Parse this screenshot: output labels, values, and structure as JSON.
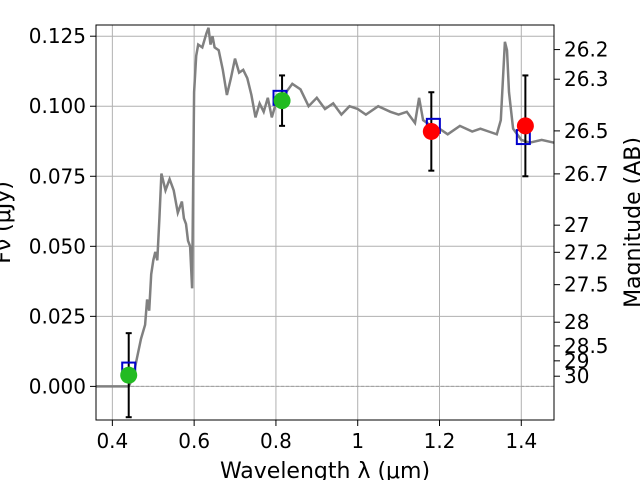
{
  "chart_data": {
    "type": "line",
    "title": "",
    "xlabel": "Wavelength  λ (μm)",
    "ylabel": "Fν (μJy)",
    "ylabel_right": "Magnitude (AB)",
    "xlim": [
      0.36,
      1.48
    ],
    "ylim": [
      -0.012,
      0.129
    ],
    "grid": true,
    "x_ticks": [
      {
        "value": 0.4,
        "label": "0.4"
      },
      {
        "value": 0.6,
        "label": "0.6"
      },
      {
        "value": 0.8,
        "label": "0.8"
      },
      {
        "value": 1.0,
        "label": "1"
      },
      {
        "value": 1.2,
        "label": "1.2"
      },
      {
        "value": 1.4,
        "label": "1.4"
      }
    ],
    "y_ticks": [
      {
        "value": 0.0,
        "label": "0.000"
      },
      {
        "value": 0.025,
        "label": "0.025"
      },
      {
        "value": 0.05,
        "label": "0.050"
      },
      {
        "value": 0.075,
        "label": "0.075"
      },
      {
        "value": 0.1,
        "label": "0.100"
      },
      {
        "value": 0.125,
        "label": "0.125"
      }
    ],
    "right_ticks": [
      {
        "value": 26.2,
        "label": "26.2"
      },
      {
        "value": 26.3,
        "label": "26.3"
      },
      {
        "value": 26.5,
        "label": "26.5"
      },
      {
        "value": 26.7,
        "label": "26.7"
      },
      {
        "value": 27.0,
        "label": "27"
      },
      {
        "value": 27.2,
        "label": "27.2"
      },
      {
        "value": 27.5,
        "label": "27.5"
      },
      {
        "value": 28.0,
        "label": "28"
      },
      {
        "value": 28.5,
        "label": "28.5"
      },
      {
        "value": 29.0,
        "label": "29"
      },
      {
        "value": 30.0,
        "label": "30"
      }
    ],
    "colors": {
      "model": "#808080",
      "model_photometry": "#0000cc",
      "detection": "#22bb22",
      "measurement": "#ff0000",
      "errorbar": "#000000",
      "grid": "#b0b0b0"
    },
    "model_spectrum": {
      "x": [
        0.36,
        0.42,
        0.44,
        0.45,
        0.46,
        0.47,
        0.48,
        0.485,
        0.49,
        0.495,
        0.5,
        0.505,
        0.51,
        0.515,
        0.52,
        0.53,
        0.54,
        0.55,
        0.56,
        0.57,
        0.575,
        0.58,
        0.585,
        0.59,
        0.595,
        0.6,
        0.605,
        0.61,
        0.62,
        0.63,
        0.635,
        0.64,
        0.645,
        0.65,
        0.66,
        0.67,
        0.68,
        0.69,
        0.7,
        0.71,
        0.72,
        0.73,
        0.74,
        0.75,
        0.76,
        0.77,
        0.78,
        0.79,
        0.8,
        0.82,
        0.84,
        0.86,
        0.88,
        0.9,
        0.92,
        0.94,
        0.96,
        0.98,
        1.0,
        1.02,
        1.05,
        1.08,
        1.1,
        1.12,
        1.14,
        1.15,
        1.16,
        1.18,
        1.2,
        1.22,
        1.25,
        1.28,
        1.3,
        1.32,
        1.34,
        1.35,
        1.36,
        1.365,
        1.37,
        1.38,
        1.4,
        1.42,
        1.45,
        1.48
      ],
      "y": [
        0.0,
        0.0,
        0.0,
        0.003,
        0.01,
        0.017,
        0.022,
        0.031,
        0.027,
        0.04,
        0.045,
        0.048,
        0.045,
        0.06,
        0.076,
        0.07,
        0.074,
        0.07,
        0.062,
        0.066,
        0.06,
        0.058,
        0.052,
        0.05,
        0.035,
        0.105,
        0.118,
        0.122,
        0.121,
        0.126,
        0.128,
        0.122,
        0.125,
        0.121,
        0.12,
        0.113,
        0.104,
        0.11,
        0.117,
        0.112,
        0.113,
        0.11,
        0.104,
        0.096,
        0.101,
        0.098,
        0.103,
        0.096,
        0.101,
        0.104,
        0.108,
        0.106,
        0.1,
        0.103,
        0.099,
        0.101,
        0.097,
        0.1,
        0.099,
        0.097,
        0.1,
        0.098,
        0.097,
        0.098,
        0.094,
        0.103,
        0.095,
        0.093,
        0.092,
        0.09,
        0.093,
        0.091,
        0.092,
        0.091,
        0.09,
        0.095,
        0.123,
        0.12,
        0.105,
        0.092,
        0.088,
        0.087,
        0.088,
        0.087
      ]
    },
    "model_photometry": {
      "x": [
        0.44,
        0.81,
        1.185,
        1.405
      ],
      "y": [
        0.006,
        0.103,
        0.093,
        0.089
      ]
    },
    "detections": {
      "x": [
        0.44,
        0.815
      ],
      "y": [
        0.004,
        0.102
      ],
      "err": [
        0.015,
        0.009
      ]
    },
    "measurements": {
      "x": [
        1.18,
        1.41
      ],
      "y": [
        0.091,
        0.093
      ],
      "err": [
        0.014,
        0.018
      ]
    }
  }
}
